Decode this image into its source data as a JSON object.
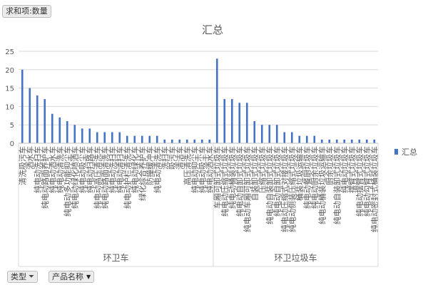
{
  "value_field_button": "求和项:数量",
  "filter_fields": {
    "type": "类型",
    "product": "产品名称"
  },
  "colors": {
    "bar": "#4472c4",
    "grid": "#d9d9d9",
    "text": "#595959"
  },
  "chart_data": {
    "type": "bar",
    "title": "汇总",
    "legend": {
      "label": "汇总",
      "position": "right"
    },
    "y_ticks": [
      "0",
      "5",
      "10",
      "15",
      "20",
      "25"
    ],
    "ylim": [
      0,
      25
    ],
    "grid": true,
    "groups": [
      {
        "label": "环卫车",
        "values": [
          20,
          15,
          13,
          12,
          8,
          7,
          6,
          5,
          4,
          4,
          3,
          3,
          3,
          3,
          2,
          2,
          2,
          2,
          2,
          1,
          1,
          1,
          1,
          1,
          1,
          1
        ]
      },
      {
        "label": "环卫垃圾车",
        "values": [
          23,
          12,
          12,
          11,
          11,
          6,
          5,
          5,
          5,
          3,
          3,
          2,
          2,
          2,
          1,
          1,
          1,
          1,
          1,
          1,
          1,
          1
        ]
      }
    ],
    "category_labels": [
      "清洗吸污车",
      "洒水车",
      "纯电动洗扫车",
      "纯电动路面养护车",
      "纯电动洒水车",
      "纯电动清洗车",
      "纯电动多功能抑尘车",
      "纯电动绿化喷洒车",
      "纯电动吸尘车",
      "纯电动扫路车",
      "纯电动高压清洗车",
      "纯电动路面清洗车",
      "纯电动洗扫车",
      "纯电动清扫车",
      "纯电动护栏清洗车",
      "纯电动绿化车",
      "绿化综合养护车",
      "防撞缓冲车",
      "纯电动清洗车",
      "洗扫车",
      "吸污车",
      "清洁车",
      "高压清洗车",
      "纯电动抑尘车",
      "纯电动吸尘车",
      "纯电动洒水车",
      "车厢可卸式垃圾车",
      "纯电动压缩式垃圾车",
      "纯电动桶装垃圾车",
      "纯电动自卸式垃圾车",
      "纯电动车厢可卸式垃圾车",
      "自装卸式垃圾车",
      "压缩式垃圾车",
      "纯电动自装卸式垃圾车",
      "纯电动自卸式垃圾车",
      "纯电动压缩式对接垃圾车",
      "纯电动侧装压缩式垃圾车",
      "桶装垃圾运输车",
      "纯电动餐厨垃圾车",
      "纯电动厨余垃圾车",
      "纯电动桶装垃圾运输车",
      "厨余垃圾车",
      "纯电动自装卸式垃圾车",
      "纯电动垃圾车",
      "摆臂式垃圾车",
      "纯电动摆臂式垃圾车",
      "纯电动勾臂式垃圾车",
      "纯电动密封式桶装垃圾车"
    ]
  }
}
